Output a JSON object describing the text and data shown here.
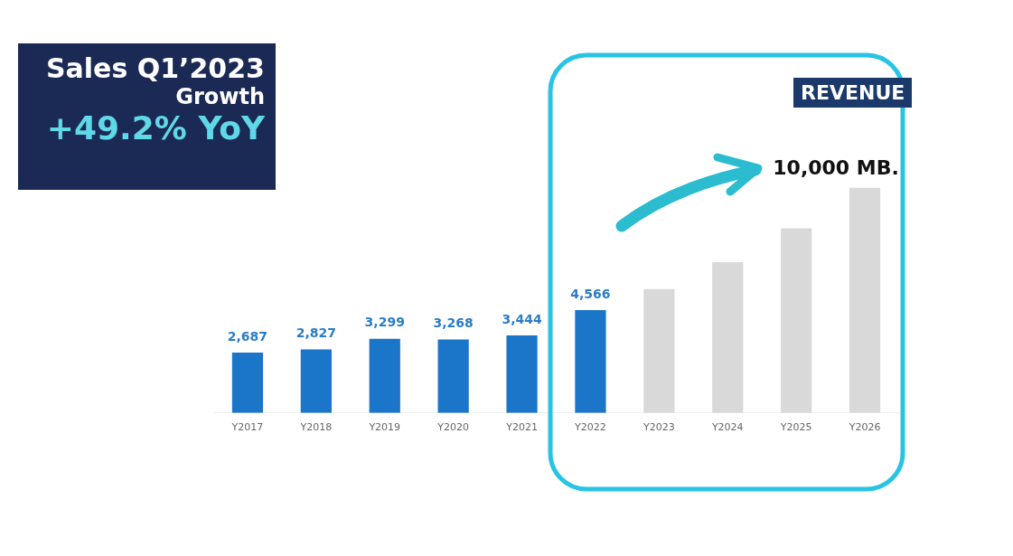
{
  "chart_data": {
    "type": "bar",
    "title": "Sales Q1’2023",
    "subtitle": "Growth",
    "annotations": [
      "+49.2% YoY",
      "REVENUE"
    ],
    "categories": [
      "Y2017",
      "Y2018",
      "Y2019",
      "Y2020",
      "Y2021",
      "Y2022",
      "Y2023",
      "Y2024",
      "Y2025",
      "Y2026"
    ],
    "values": [
      2687,
      2827,
      3299,
      3268,
      3444,
      4566,
      5500,
      6700,
      8200,
      10000
    ],
    "value_labels": [
      "2,687",
      "2,827",
      "3,299",
      "3,268",
      "3,444",
      "4,566",
      null,
      null,
      null,
      "10,000 MB."
    ],
    "colors": [
      "#1b75c9",
      "#1b75c9",
      "#1b75c9",
      "#1b75c9",
      "#1b75c9",
      "#1b75c9",
      "#d9d9d9",
      "#d9d9d9",
      "#d9d9d9",
      "#d9d9d9"
    ],
    "grid": false,
    "legend": false
  }
}
